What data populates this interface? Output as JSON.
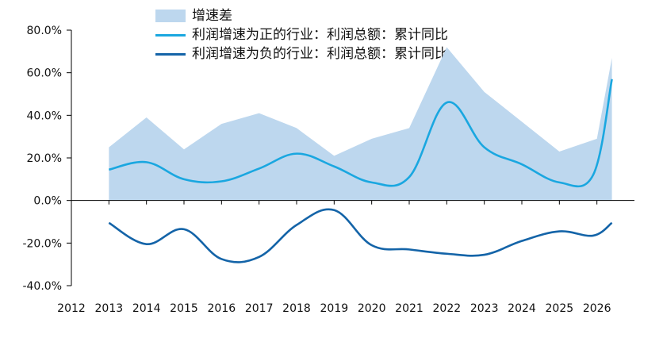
{
  "chart_data": {
    "type": "line",
    "x": [
      "2012",
      "2013",
      "2014",
      "2015",
      "2016",
      "2017",
      "2018",
      "2019",
      "2020",
      "2021",
      "2022",
      "2023",
      "2024",
      "2025",
      "2026"
    ],
    "y_ticks": [
      "80.0%",
      "60.0%",
      "40.0%",
      "20.0%",
      "0.0%",
      "-20.0%",
      "-40.0%"
    ],
    "ylim": [
      -40,
      80
    ],
    "series": [
      {
        "name": "增速差",
        "kind": "area",
        "color": "#bdd7ee",
        "points": [
          [
            2013.0,
            25
          ],
          [
            2014.0,
            39
          ],
          [
            2015.0,
            24
          ],
          [
            2016.0,
            36
          ],
          [
            2017.0,
            41
          ],
          [
            2018.0,
            34
          ],
          [
            2019.0,
            21
          ],
          [
            2020.0,
            29
          ],
          [
            2021.0,
            34
          ],
          [
            2022.0,
            72
          ],
          [
            2023.0,
            51
          ],
          [
            2024.0,
            37
          ],
          [
            2025.0,
            23
          ],
          [
            2026.0,
            29
          ],
          [
            2026.4,
            67
          ]
        ]
      },
      {
        "name": "利润增速为正的行业：利润总额：累计同比",
        "kind": "line",
        "color": "#1aa7e0",
        "points": [
          [
            2013.0,
            14.5
          ],
          [
            2014.0,
            18
          ],
          [
            2015.0,
            10
          ],
          [
            2016.0,
            9
          ],
          [
            2017.0,
            15
          ],
          [
            2018.0,
            22
          ],
          [
            2019.0,
            16
          ],
          [
            2020.0,
            8.5
          ],
          [
            2021.0,
            11
          ],
          [
            2022.0,
            46
          ],
          [
            2023.0,
            25
          ],
          [
            2024.0,
            17
          ],
          [
            2025.0,
            8.5
          ],
          [
            2025.9,
            12
          ],
          [
            2026.4,
            57
          ]
        ]
      },
      {
        "name": "利润增速为负的行业：利润总额：累计同比",
        "kind": "line",
        "color": "#1464a8",
        "points": [
          [
            2013.0,
            -10.5
          ],
          [
            2014.0,
            -20.5
          ],
          [
            2015.0,
            -13.5
          ],
          [
            2016.0,
            -27.5
          ],
          [
            2017.0,
            -26.5
          ],
          [
            2018.0,
            -11.5
          ],
          [
            2019.0,
            -4.5
          ],
          [
            2020.0,
            -21
          ],
          [
            2021.0,
            -23
          ],
          [
            2022.0,
            -25
          ],
          [
            2023.0,
            -25.5
          ],
          [
            2024.0,
            -19
          ],
          [
            2025.0,
            -14.5
          ],
          [
            2025.9,
            -16.5
          ],
          [
            2026.4,
            -10.5
          ]
        ]
      }
    ]
  }
}
